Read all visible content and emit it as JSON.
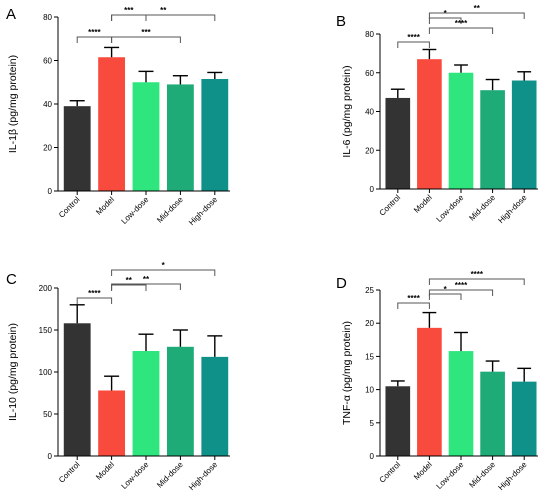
{
  "colors": {
    "bars": [
      "#333333",
      "#f94a3e",
      "#2ee57e",
      "#1eab78",
      "#0f9189"
    ]
  },
  "chart_data": [
    {
      "type": "bar",
      "panel_label": "A",
      "categories": [
        "Control",
        "Model",
        "Low-dose",
        "Mid-dose",
        "High-dose"
      ],
      "values": [
        39,
        61.5,
        50,
        49,
        51.5
      ],
      "errors": [
        2.5,
        4.5,
        5,
        4,
        3
      ],
      "ylabel": "IL-1β  (pg/mg protein)",
      "ylim": [
        0,
        80
      ],
      "yticks": [
        0,
        20,
        40,
        60,
        80
      ],
      "significance": [
        {
          "from": 0,
          "to": 1,
          "label": "****"
        },
        {
          "from": 1,
          "to": 2,
          "label": "***"
        },
        {
          "from": 1,
          "to": 3,
          "label": "***"
        },
        {
          "from": 1,
          "to": 4,
          "label": "**"
        }
      ]
    },
    {
      "type": "bar",
      "panel_label": "B",
      "categories": [
        "Control",
        "Model",
        "Low-dose",
        "Mid-dose",
        "High-dose"
      ],
      "values": [
        47,
        67,
        60,
        51,
        56
      ],
      "errors": [
        4.5,
        5,
        4,
        5.5,
        4.5
      ],
      "ylabel": "IL-6  (pg/mg protein)",
      "ylim": [
        0,
        80
      ],
      "yticks": [
        0,
        20,
        40,
        60,
        80
      ],
      "significance": [
        {
          "from": 0,
          "to": 1,
          "label": "****"
        },
        {
          "from": 1,
          "to": 2,
          "label": "*"
        },
        {
          "from": 1,
          "to": 3,
          "label": "****"
        },
        {
          "from": 1,
          "to": 4,
          "label": "**"
        }
      ]
    },
    {
      "type": "bar",
      "panel_label": "C",
      "categories": [
        "Control",
        "Model",
        "Low-dose",
        "Mid-dose",
        "High-dose"
      ],
      "values": [
        158,
        78,
        125,
        130,
        118
      ],
      "errors": [
        22,
        17,
        20,
        20,
        25
      ],
      "ylabel": "IL-10  (pg/mg protein)",
      "ylim": [
        0,
        200
      ],
      "yticks": [
        0,
        50,
        100,
        150,
        200
      ],
      "significance": [
        {
          "from": 0,
          "to": 1,
          "label": "****"
        },
        {
          "from": 1,
          "to": 2,
          "label": "**"
        },
        {
          "from": 1,
          "to": 3,
          "label": "**"
        },
        {
          "from": 1,
          "to": 4,
          "label": "*"
        }
      ]
    },
    {
      "type": "bar",
      "panel_label": "D",
      "categories": [
        "Control",
        "Model",
        "Low-dose",
        "Mid-dose",
        "High-dose"
      ],
      "values": [
        10.5,
        19.3,
        15.8,
        12.7,
        11.2
      ],
      "errors": [
        0.8,
        2.3,
        2.8,
        1.6,
        2
      ],
      "ylabel": "TNF-α  (pg/mg protein)",
      "ylim": [
        0,
        25
      ],
      "yticks": [
        0,
        5,
        10,
        15,
        20,
        25
      ],
      "significance": [
        {
          "from": 0,
          "to": 1,
          "label": "****"
        },
        {
          "from": 1,
          "to": 2,
          "label": "*"
        },
        {
          "from": 1,
          "to": 3,
          "label": "****"
        },
        {
          "from": 1,
          "to": 4,
          "label": "****"
        }
      ]
    }
  ]
}
